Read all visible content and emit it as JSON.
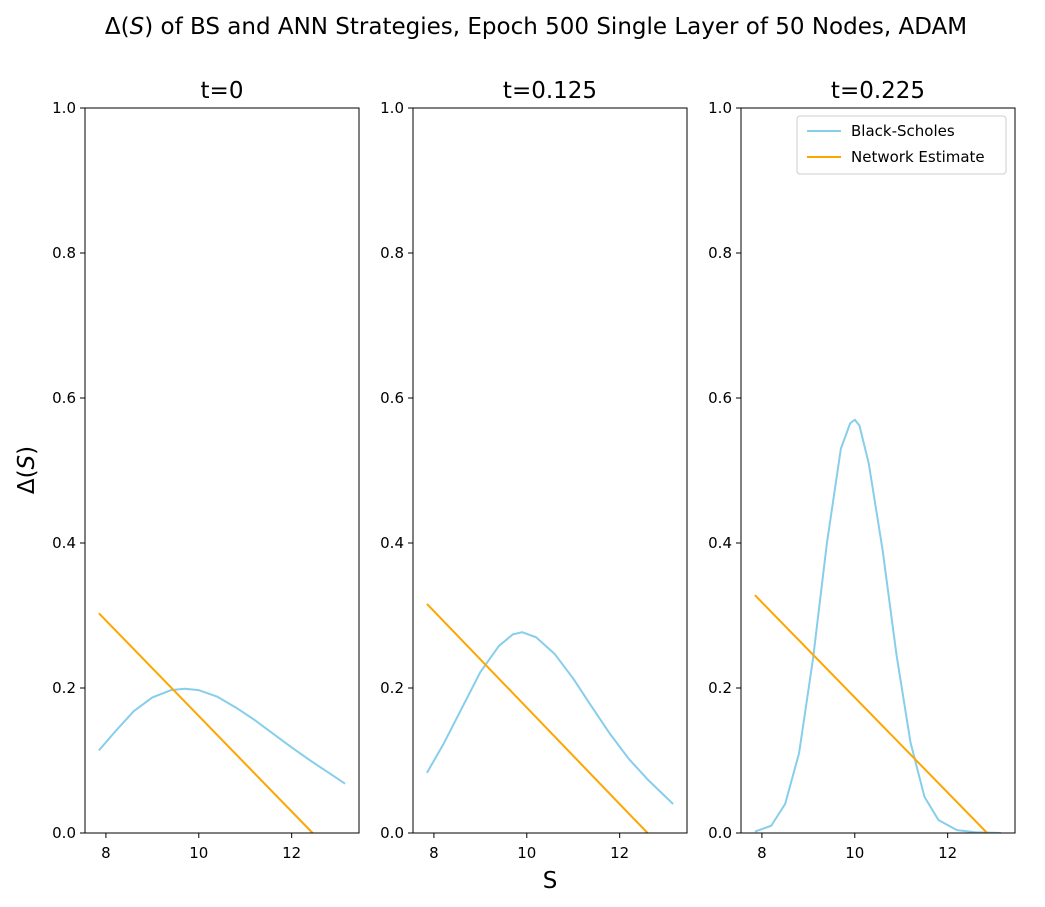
{
  "figure": {
    "title_pre": "Δ(",
    "title_var": "S",
    "title_post": ") of BS and ANN Strategies, Epoch 500 Single Layer of 50 Nodes, ADAM",
    "ylabel_pre": "Δ(",
    "ylabel_var": "S",
    "ylabel_post": ")",
    "xlabel": "S"
  },
  "colors": {
    "bs": "#87ceeb",
    "ann": "#ffa500"
  },
  "legend": {
    "items": [
      "Black-Scholes",
      "Network Estimate"
    ],
    "placement": "upper right (third panel)"
  },
  "chart_data": [
    {
      "type": "line",
      "title": "t=0",
      "xlim": [
        7.55,
        13.45
      ],
      "ylim": [
        0,
        1
      ],
      "xticks": [
        8,
        10,
        12
      ],
      "yticks": [
        0.0,
        0.2,
        0.4,
        0.6,
        0.8,
        1.0
      ],
      "series": [
        {
          "name": "Black-Scholes",
          "points": [
            [
              7.85,
              0.114
            ],
            [
              8.2,
              0.14
            ],
            [
              8.6,
              0.168
            ],
            [
              9.0,
              0.187
            ],
            [
              9.4,
              0.197
            ],
            [
              9.7,
              0.199
            ],
            [
              10.0,
              0.197
            ],
            [
              10.4,
              0.188
            ],
            [
              10.8,
              0.173
            ],
            [
              11.2,
              0.156
            ],
            [
              11.6,
              0.137
            ],
            [
              12.0,
              0.118
            ],
            [
              12.4,
              0.1
            ],
            [
              12.8,
              0.083
            ],
            [
              13.15,
              0.068
            ]
          ]
        },
        {
          "name": "Network Estimate",
          "points": [
            [
              7.85,
              0.303
            ],
            [
              12.45,
              0.0
            ]
          ]
        }
      ]
    },
    {
      "type": "line",
      "title": "t=0.125",
      "xlim": [
        7.55,
        13.45
      ],
      "ylim": [
        0,
        1
      ],
      "xticks": [
        8,
        10,
        12
      ],
      "yticks": [
        0.0,
        0.2,
        0.4,
        0.6,
        0.8,
        1.0
      ],
      "series": [
        {
          "name": "Black-Scholes",
          "points": [
            [
              7.85,
              0.083
            ],
            [
              8.2,
              0.122
            ],
            [
              8.6,
              0.172
            ],
            [
              9.0,
              0.222
            ],
            [
              9.4,
              0.258
            ],
            [
              9.7,
              0.274
            ],
            [
              9.9,
              0.277
            ],
            [
              10.2,
              0.27
            ],
            [
              10.6,
              0.247
            ],
            [
              11.0,
              0.213
            ],
            [
              11.4,
              0.174
            ],
            [
              11.8,
              0.136
            ],
            [
              12.2,
              0.102
            ],
            [
              12.6,
              0.074
            ],
            [
              13.15,
              0.04
            ]
          ]
        },
        {
          "name": "Network Estimate",
          "points": [
            [
              7.85,
              0.316
            ],
            [
              12.6,
              0.0
            ]
          ]
        }
      ]
    },
    {
      "type": "line",
      "title": "t=0.225",
      "xlim": [
        7.55,
        13.45
      ],
      "ylim": [
        0,
        1
      ],
      "xticks": [
        8,
        10,
        12
      ],
      "yticks": [
        0.0,
        0.2,
        0.4,
        0.6,
        0.8,
        1.0
      ],
      "series": [
        {
          "name": "Black-Scholes",
          "points": [
            [
              7.85,
              0.002
            ],
            [
              8.2,
              0.01
            ],
            [
              8.5,
              0.04
            ],
            [
              8.8,
              0.11
            ],
            [
              9.1,
              0.24
            ],
            [
              9.4,
              0.4
            ],
            [
              9.7,
              0.53
            ],
            [
              9.9,
              0.565
            ],
            [
              10.0,
              0.57
            ],
            [
              10.1,
              0.562
            ],
            [
              10.3,
              0.51
            ],
            [
              10.6,
              0.39
            ],
            [
              10.9,
              0.245
            ],
            [
              11.2,
              0.125
            ],
            [
              11.5,
              0.05
            ],
            [
              11.8,
              0.018
            ],
            [
              12.2,
              0.004
            ],
            [
              12.6,
              0.001
            ],
            [
              13.15,
              0.0
            ]
          ]
        },
        {
          "name": "Network Estimate",
          "points": [
            [
              7.85,
              0.328
            ],
            [
              12.85,
              0.0
            ]
          ]
        }
      ]
    }
  ]
}
